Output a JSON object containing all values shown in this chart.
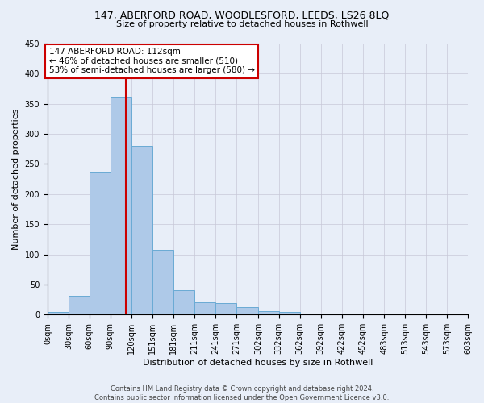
{
  "title1": "147, ABERFORD ROAD, WOODLESFORD, LEEDS, LS26 8LQ",
  "title2": "Size of property relative to detached houses in Rothwell",
  "xlabel": "Distribution of detached houses by size in Rothwell",
  "ylabel": "Number of detached properties",
  "footer1": "Contains HM Land Registry data © Crown copyright and database right 2024.",
  "footer2": "Contains public sector information licensed under the Open Government Licence v3.0.",
  "annotation_line1": "147 ABERFORD ROAD: 112sqm",
  "annotation_line2": "← 46% of detached houses are smaller (510)",
  "annotation_line3": "53% of semi-detached houses are larger (580) →",
  "property_sqm": 112,
  "bin_edges": [
    0,
    30,
    60,
    90,
    120,
    151,
    181,
    211,
    241,
    271,
    302,
    332,
    362,
    392,
    422,
    452,
    483,
    513,
    543,
    573,
    603
  ],
  "bar_values": [
    4,
    31,
    236,
    362,
    280,
    107,
    41,
    20,
    19,
    13,
    6,
    4,
    1,
    0,
    0,
    0,
    2,
    0,
    0,
    1
  ],
  "bar_color": "#aec9e8",
  "bar_edge_color": "#6aaad4",
  "vline_color": "#cc0000",
  "vline_x": 112,
  "annotation_box_color": "#cc0000",
  "ylim": [
    0,
    450
  ],
  "background_color": "#e8eef8",
  "grid_color": "#c8c8d8",
  "title1_fontsize": 9,
  "title2_fontsize": 8,
  "ylabel_fontsize": 8,
  "xlabel_fontsize": 8,
  "tick_fontsize": 7,
  "footer_fontsize": 6
}
